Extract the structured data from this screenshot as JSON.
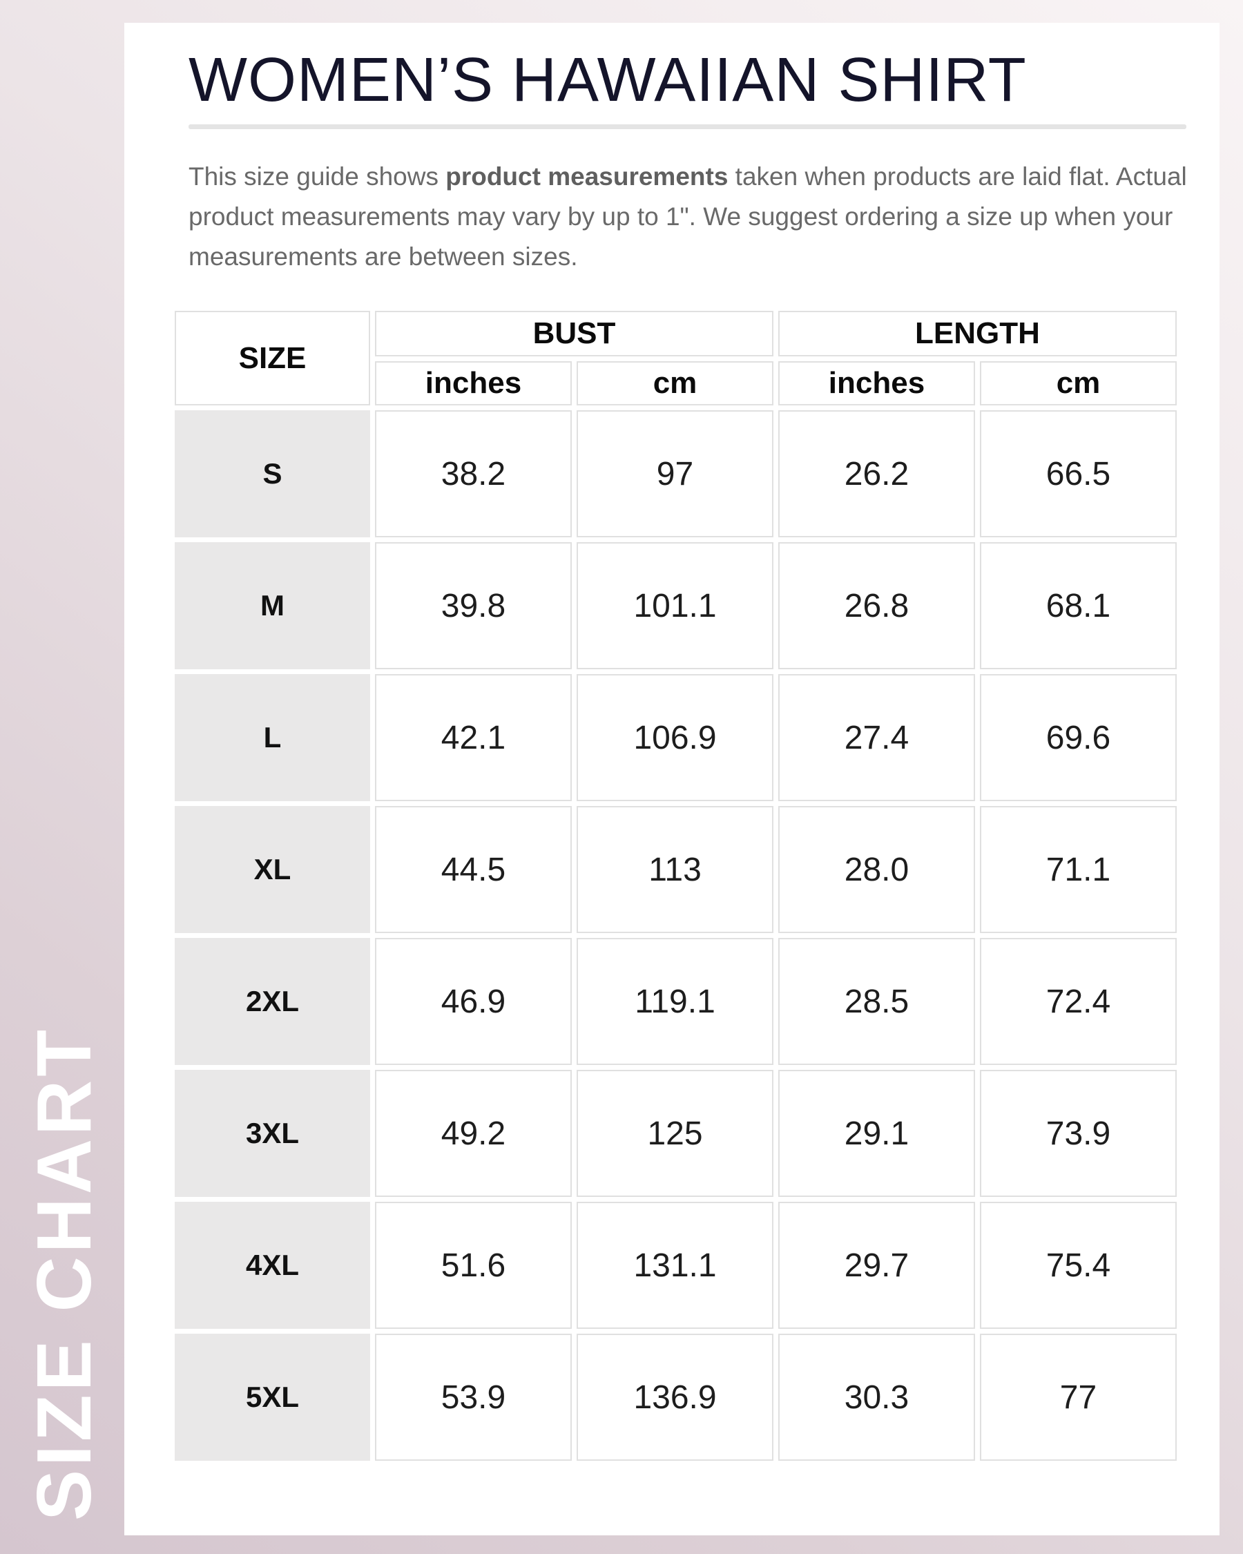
{
  "sidebar": {
    "vertical_label": "SIZE CHART"
  },
  "header": {
    "title": "WOMEN’S HAWAIIAN SHIRT"
  },
  "description": {
    "before_bold": "This size guide shows ",
    "bold": "product measurements",
    "after_bold": " taken when products are laid flat. Actual product measurements may vary by up to 1\". We suggest ordering a size up when your measurements are between sizes."
  },
  "table": {
    "size_header": "SIZE",
    "group_headers": {
      "bust": "BUST",
      "length": "LENGTH"
    },
    "unit_headers": {
      "bust_inches": "inches",
      "bust_cm": "cm",
      "length_inches": "inches",
      "length_cm": "cm"
    },
    "rows": [
      {
        "size": "S",
        "bust_in": "38.2",
        "bust_cm": "97",
        "len_in": "26.2",
        "len_cm": "66.5"
      },
      {
        "size": "M",
        "bust_in": "39.8",
        "bust_cm": "101.1",
        "len_in": "26.8",
        "len_cm": "68.1"
      },
      {
        "size": "L",
        "bust_in": "42.1",
        "bust_cm": "106.9",
        "len_in": "27.4",
        "len_cm": "69.6"
      },
      {
        "size": "XL",
        "bust_in": "44.5",
        "bust_cm": "113",
        "len_in": "28.0",
        "len_cm": "71.1"
      },
      {
        "size": "2XL",
        "bust_in": "46.9",
        "bust_cm": "119.1",
        "len_in": "28.5",
        "len_cm": "72.4"
      },
      {
        "size": "3XL",
        "bust_in": "49.2",
        "bust_cm": "125",
        "len_in": "29.1",
        "len_cm": "73.9"
      },
      {
        "size": "4XL",
        "bust_in": "51.6",
        "bust_cm": "131.1",
        "len_in": "29.7",
        "len_cm": "75.4"
      },
      {
        "size": "5XL",
        "bust_in": "53.9",
        "bust_cm": "136.9",
        "len_in": "30.3",
        "len_cm": "77"
      }
    ]
  },
  "colors": {
    "background_gradient_start": "#f9f4f5",
    "background_gradient_end": "#d5c6cf",
    "card_background": "#ffffff",
    "title_text": "#14142a",
    "body_text": "#696969",
    "table_text": "#1d1d1d",
    "size_cell_background": "#e9e8e8",
    "cell_border": "#e0e0e0",
    "divider": "#e4e4e4",
    "sidebar_label_text": "#ffffff"
  }
}
